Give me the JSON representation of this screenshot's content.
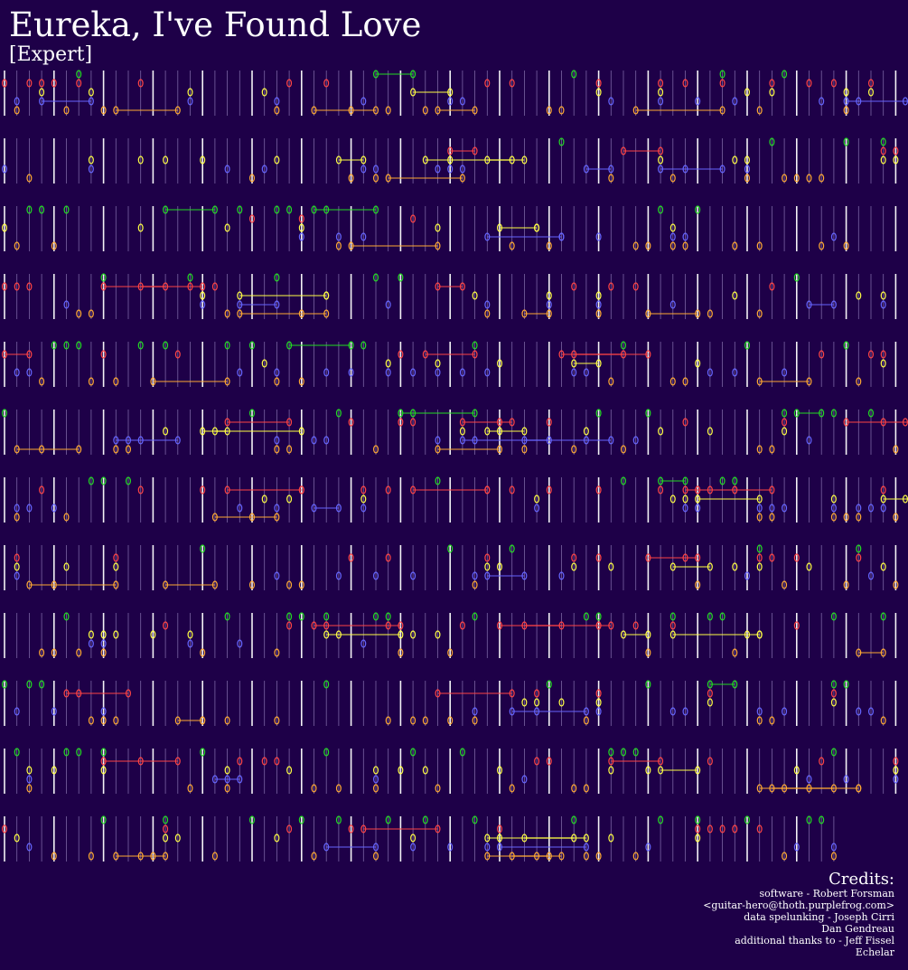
{
  "header": {
    "title": "Eureka, I've Found Love",
    "difficulty": "[Expert]"
  },
  "credits": {
    "heading": "Credits:",
    "lines": [
      "software - Robert Forsman",
      "<guitar-hero@thoth.purplefrog.com>",
      "data spelunking - Joseph Cirri",
      "Dan Gendreau",
      "additional thanks to - Jeff Fissel",
      "Echelar"
    ]
  }
}
